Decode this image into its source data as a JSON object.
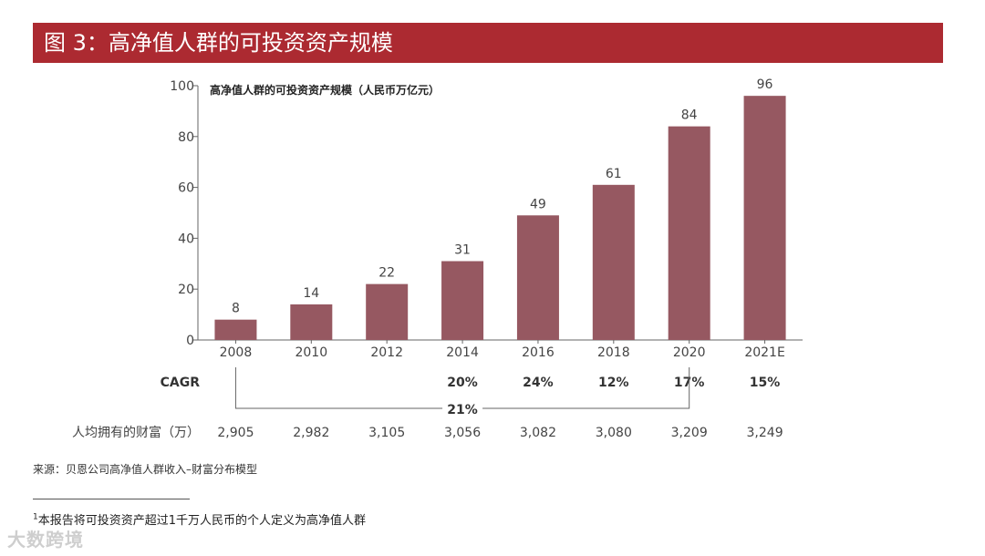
{
  "header": {
    "title": "图 3：高净值人群的可投资资产规模",
    "banner_color": "#ac2a31"
  },
  "chart_data": {
    "type": "bar",
    "title": "高净值人群的可投资资产规模（人民币万亿元）",
    "categories": [
      "2008",
      "2010",
      "2012",
      "2014",
      "2016",
      "2018",
      "2020",
      "2021E"
    ],
    "values": [
      8,
      14,
      22,
      31,
      49,
      61,
      84,
      96
    ],
    "yticks": [
      0,
      20,
      40,
      60,
      80,
      100
    ],
    "ylim": [
      0,
      100
    ],
    "xlabel": "",
    "ylabel": "",
    "bar_color": "#965861",
    "cagr": {
      "label": "CAGR",
      "values": [
        "",
        "",
        "",
        "20%",
        "24%",
        "12%",
        "17%",
        "15%"
      ],
      "overall": "21%"
    },
    "wealth": {
      "label": "人均拥有的财富（万）",
      "values": [
        "2,905",
        "2,982",
        "3,105",
        "3,056",
        "3,082",
        "3,080",
        "3,209",
        "3,249"
      ]
    }
  },
  "source": "来源：贝恩公司高净值人群收入–财富分布模型",
  "footnote": {
    "marker": "1",
    "text": "本报告将可投资资产超过1千万人民币的个人定义为高净值人群"
  },
  "watermark": "大数跨境"
}
